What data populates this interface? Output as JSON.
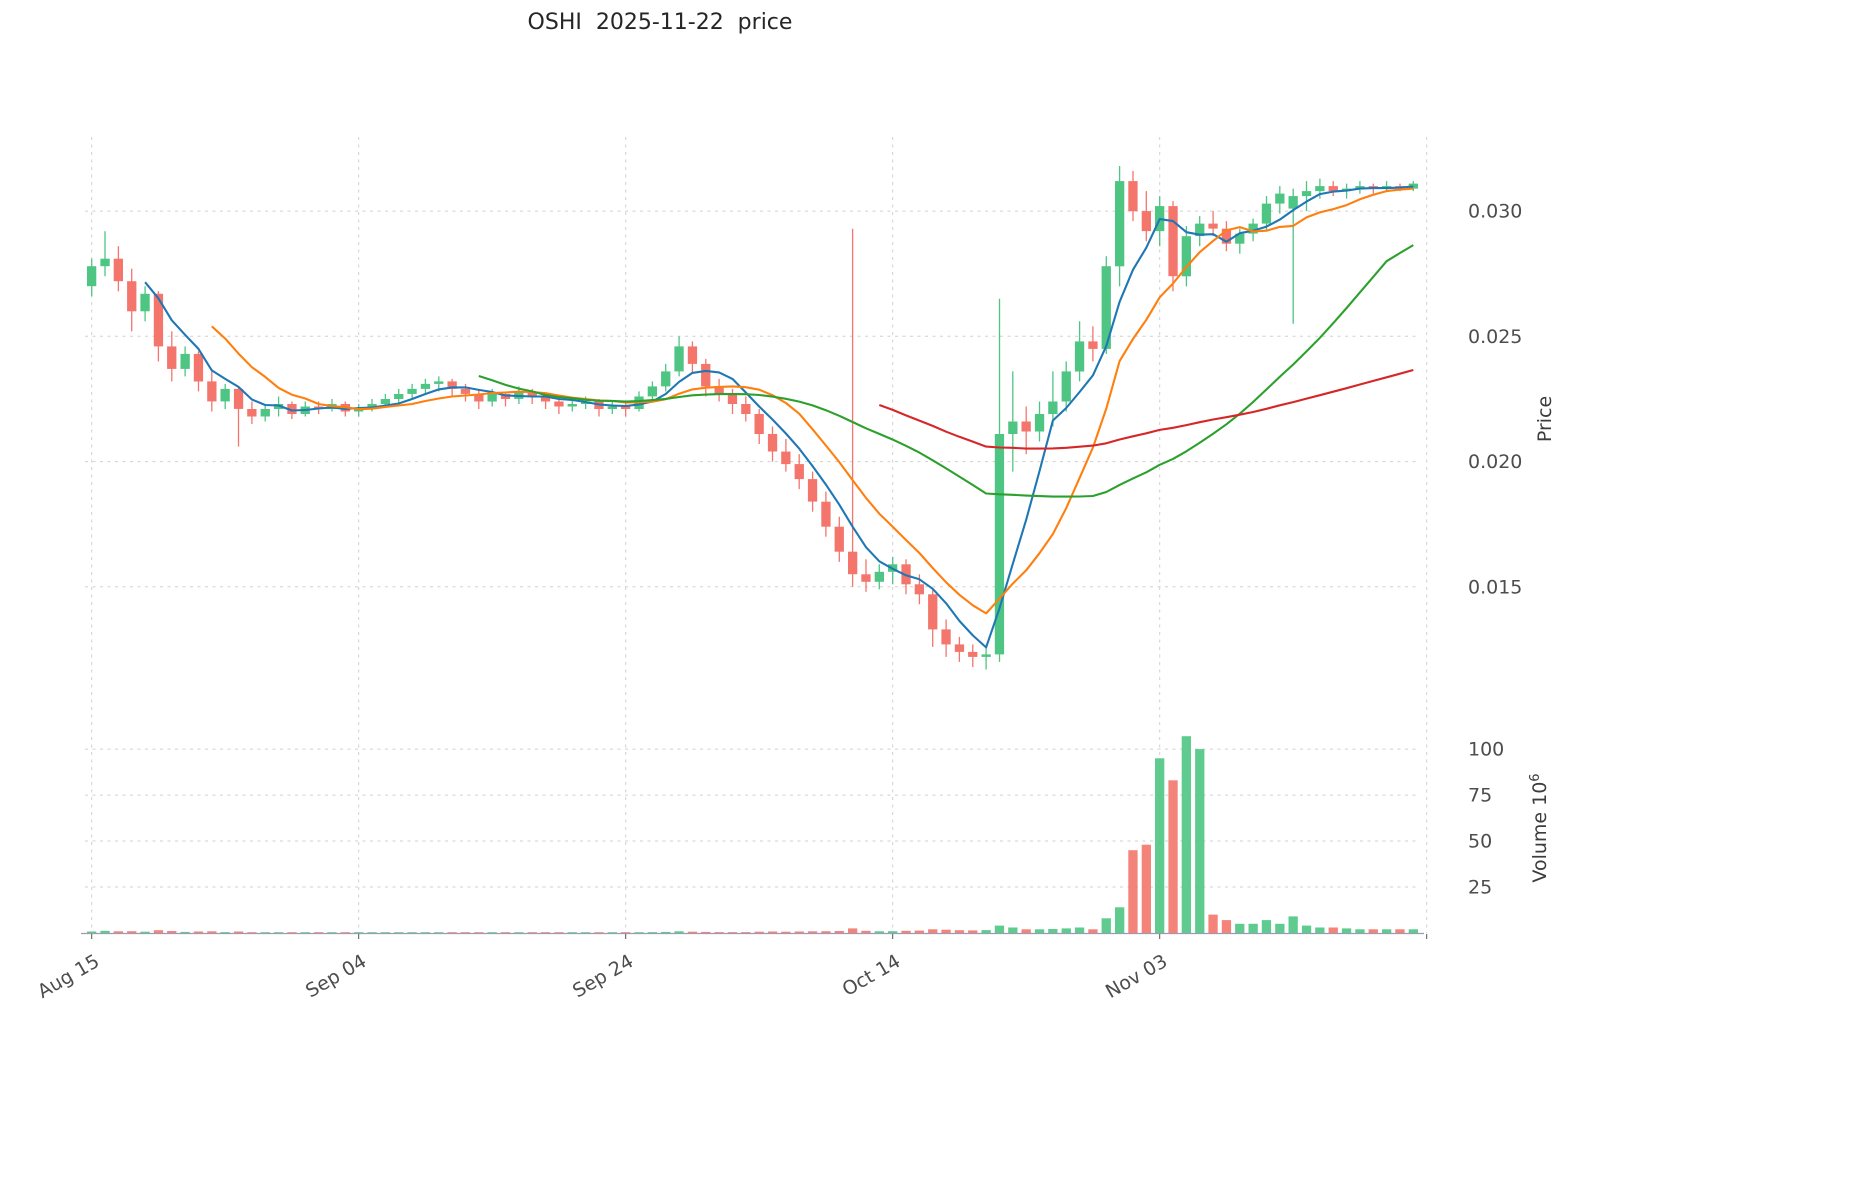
{
  "title": "OSHI  2025-11-22  price",
  "chart_data": {
    "type": "candlestick",
    "x_tick_labels": [
      "Aug 15",
      "Sep 04",
      "Sep 24",
      "Oct 14",
      "Nov 03"
    ],
    "x_tick_indices": [
      0,
      20,
      40,
      60,
      80
    ],
    "x_grid_indices": [
      0,
      20,
      40,
      60,
      80,
      100
    ],
    "price_axis": {
      "ylabel": "Price",
      "ticks": [
        0.015,
        0.02,
        0.025,
        0.03
      ],
      "ylim": [
        0.0108,
        0.0326
      ]
    },
    "volume_axis": {
      "ylabel_main": "Volume  10",
      "ylabel_sup": "6",
      "ticks": [
        25,
        50,
        75,
        100
      ],
      "ylim": [
        0,
        112
      ]
    },
    "moving_averages": {
      "windows": [
        5,
        10,
        30,
        60
      ],
      "colors": [
        "#1f77b4",
        "#ff7f0e",
        "#2ca02c",
        "#d62728"
      ]
    },
    "colors": {
      "up": "#4EC583",
      "down": "#F3756C",
      "grid": "#d0d0d0",
      "axis": "#9b9bb5",
      "tick_text": "#4d4d4d"
    },
    "open": [
      0.027,
      0.0278,
      0.0281,
      0.0272,
      0.026,
      0.0267,
      0.0246,
      0.0237,
      0.0243,
      0.0232,
      0.0224,
      0.0229,
      0.0221,
      0.0218,
      0.0221,
      0.0223,
      0.0219,
      0.0222,
      0.0221,
      0.0223,
      0.022,
      0.0221,
      0.0223,
      0.0225,
      0.0227,
      0.0229,
      0.0231,
      0.0232,
      0.0229,
      0.0227,
      0.0224,
      0.0227,
      0.0225,
      0.0228,
      0.0226,
      0.0224,
      0.0222,
      0.0223,
      0.0224,
      0.0221,
      0.0222,
      0.0221,
      0.0226,
      0.023,
      0.0236,
      0.0246,
      0.0239,
      0.023,
      0.0227,
      0.0223,
      0.0219,
      0.0211,
      0.0204,
      0.0199,
      0.0193,
      0.0184,
      0.0174,
      0.0164,
      0.0155,
      0.0152,
      0.0156,
      0.0159,
      0.0151,
      0.0147,
      0.0133,
      0.0127,
      0.0124,
      0.0122,
      0.0123,
      0.0211,
      0.0216,
      0.0212,
      0.0219,
      0.0224,
      0.0236,
      0.0248,
      0.0245,
      0.0278,
      0.0312,
      0.03,
      0.0292,
      0.0302,
      0.0274,
      0.029,
      0.0295,
      0.0293,
      0.0287,
      0.0291,
      0.0295,
      0.0303,
      0.0301,
      0.0306,
      0.0308,
      0.031,
      0.0308,
      0.0309,
      0.031,
      0.0309,
      0.031,
      0.0309
    ],
    "high": [
      0.0281,
      0.0292,
      0.0286,
      0.0277,
      0.027,
      0.0268,
      0.0252,
      0.0246,
      0.0244,
      0.0236,
      0.0231,
      0.023,
      0.0224,
      0.0223,
      0.0226,
      0.0224,
      0.0224,
      0.0224,
      0.0225,
      0.0224,
      0.0223,
      0.0225,
      0.0227,
      0.0229,
      0.0231,
      0.0233,
      0.0234,
      0.0233,
      0.0231,
      0.0229,
      0.0229,
      0.0228,
      0.023,
      0.0229,
      0.0227,
      0.0226,
      0.0225,
      0.0226,
      0.0225,
      0.0224,
      0.0224,
      0.0228,
      0.0232,
      0.0239,
      0.025,
      0.0248,
      0.0241,
      0.0233,
      0.0229,
      0.0226,
      0.0221,
      0.0214,
      0.0209,
      0.0203,
      0.0196,
      0.0188,
      0.0178,
      0.0293,
      0.0161,
      0.0159,
      0.0162,
      0.0161,
      0.0155,
      0.0149,
      0.0137,
      0.013,
      0.0127,
      0.0126,
      0.0265,
      0.0236,
      0.0222,
      0.0224,
      0.0236,
      0.024,
      0.0256,
      0.0254,
      0.0282,
      0.0318,
      0.0316,
      0.0308,
      0.0306,
      0.0304,
      0.0294,
      0.0298,
      0.03,
      0.0296,
      0.0293,
      0.0297,
      0.0306,
      0.031,
      0.0309,
      0.0312,
      0.0313,
      0.0312,
      0.0311,
      0.0312,
      0.0311,
      0.0312,
      0.0311,
      0.0312
    ],
    "low": [
      0.0266,
      0.0274,
      0.0268,
      0.0252,
      0.0256,
      0.024,
      0.0232,
      0.0234,
      0.0228,
      0.022,
      0.0221,
      0.0206,
      0.0215,
      0.0216,
      0.0218,
      0.0217,
      0.0218,
      0.0219,
      0.022,
      0.0218,
      0.0218,
      0.022,
      0.0222,
      0.0223,
      0.0225,
      0.0227,
      0.0228,
      0.0226,
      0.0224,
      0.0221,
      0.0222,
      0.0222,
      0.0223,
      0.0223,
      0.0221,
      0.0219,
      0.022,
      0.0221,
      0.0218,
      0.0219,
      0.0218,
      0.022,
      0.0224,
      0.0228,
      0.0234,
      0.0235,
      0.0226,
      0.0224,
      0.0219,
      0.0216,
      0.0207,
      0.02,
      0.0196,
      0.0189,
      0.018,
      0.017,
      0.016,
      0.015,
      0.0148,
      0.0149,
      0.0151,
      0.0147,
      0.0143,
      0.0126,
      0.0122,
      0.012,
      0.0118,
      0.0117,
      0.012,
      0.0196,
      0.0203,
      0.0208,
      0.0214,
      0.022,
      0.0232,
      0.024,
      0.0243,
      0.027,
      0.0296,
      0.0288,
      0.0286,
      0.0268,
      0.027,
      0.0286,
      0.029,
      0.0284,
      0.0283,
      0.0288,
      0.0292,
      0.0299,
      0.0255,
      0.03,
      0.0305,
      0.0306,
      0.0305,
      0.0307,
      0.0307,
      0.0308,
      0.0308,
      0.0308
    ],
    "close": [
      0.0278,
      0.0281,
      0.0272,
      0.026,
      0.0267,
      0.0246,
      0.0237,
      0.0243,
      0.0232,
      0.0224,
      0.0229,
      0.0221,
      0.0218,
      0.0221,
      0.0223,
      0.0219,
      0.0222,
      0.0221,
      0.0223,
      0.022,
      0.0221,
      0.0223,
      0.0225,
      0.0227,
      0.0229,
      0.0231,
      0.0232,
      0.0229,
      0.0227,
      0.0224,
      0.0227,
      0.0225,
      0.0228,
      0.0226,
      0.0224,
      0.0222,
      0.0223,
      0.0224,
      0.0221,
      0.0222,
      0.0221,
      0.0226,
      0.023,
      0.0236,
      0.0246,
      0.0239,
      0.023,
      0.0227,
      0.0223,
      0.0219,
      0.0211,
      0.0204,
      0.0199,
      0.0193,
      0.0184,
      0.0174,
      0.0164,
      0.0155,
      0.0152,
      0.0156,
      0.0159,
      0.0151,
      0.0147,
      0.0133,
      0.0127,
      0.0124,
      0.0122,
      0.0123,
      0.0211,
      0.0216,
      0.0212,
      0.0219,
      0.0224,
      0.0236,
      0.0248,
      0.0245,
      0.0278,
      0.0312,
      0.03,
      0.0292,
      0.0302,
      0.0274,
      0.029,
      0.0295,
      0.0293,
      0.0287,
      0.0291,
      0.0295,
      0.0303,
      0.0307,
      0.0306,
      0.0308,
      0.031,
      0.0308,
      0.0309,
      0.031,
      0.0309,
      0.031,
      0.0309,
      0.0311
    ],
    "volume": [
      0.8,
      1.2,
      0.9,
      1.0,
      0.7,
      1.5,
      1.1,
      0.6,
      0.8,
      0.9,
      0.5,
      0.8,
      0.4,
      0.3,
      0.4,
      0.3,
      0.3,
      0.25,
      0.3,
      0.3,
      0.3,
      0.25,
      0.3,
      0.35,
      0.4,
      0.4,
      0.35,
      0.3,
      0.3,
      0.3,
      0.25,
      0.3,
      0.3,
      0.25,
      0.3,
      0.3,
      0.25,
      0.25,
      0.3,
      0.25,
      0.3,
      0.4,
      0.5,
      0.6,
      0.9,
      0.7,
      0.6,
      0.5,
      0.5,
      0.5,
      0.7,
      0.8,
      0.7,
      0.8,
      0.9,
      1.0,
      1.1,
      2.5,
      1.2,
      0.9,
      1.0,
      1.2,
      1.3,
      2.0,
      1.8,
      1.5,
      1.4,
      1.6,
      4.0,
      3.0,
      2.0,
      2.0,
      2.2,
      2.5,
      3.0,
      2.0,
      8,
      14,
      45,
      48,
      95,
      83,
      107,
      100,
      10,
      7,
      5,
      5,
      7,
      5,
      9,
      4,
      3,
      3,
      2.5,
      2,
      2,
      2,
      2,
      2
    ]
  }
}
